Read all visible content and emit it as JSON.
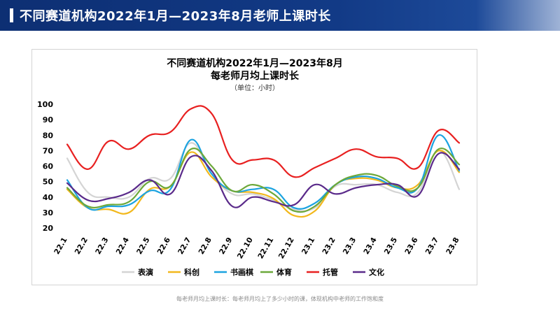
{
  "header": {
    "title": "不同赛道机构2022年1月—2023年8月老师上课时长"
  },
  "footnote": "每老师月均上课时长：每老师月均上了多少小时的课，体现机构中老师的工作饱和度",
  "chart_data": {
    "type": "line",
    "title_line1": "不同赛道机构2022年1月—2023年8月",
    "title_line2": "每老师月均上课时长",
    "unit": "（单位：小时）",
    "categories": [
      "22.1",
      "22.2",
      "22.3",
      "22.4",
      "22.5",
      "22.6",
      "22.7",
      "22.8",
      "22.9",
      "22.10",
      "22.11",
      "22.12",
      "23.1",
      "23.2",
      "23.3",
      "23.4",
      "23.5",
      "23.6",
      "23.7",
      "23.8"
    ],
    "ylim": [
      20,
      100
    ],
    "yticks": [
      20,
      30,
      40,
      50,
      60,
      70,
      80,
      90,
      100
    ],
    "grid": false,
    "legend_position": "bottom",
    "series": [
      {
        "name": "表演",
        "color": "#d4d4d4",
        "values": [
          65,
          43,
          40,
          40,
          52,
          52,
          75,
          55,
          42,
          42,
          38,
          32,
          33,
          47,
          48,
          48,
          43,
          43,
          70,
          45
        ]
      },
      {
        "name": "科创",
        "color": "#f2b81c",
        "values": [
          45,
          33,
          32,
          30,
          45,
          47,
          69,
          53,
          44,
          43,
          39,
          28,
          31,
          48,
          52,
          51,
          46,
          48,
          70,
          56
        ]
      },
      {
        "name": "书画棋",
        "color": "#1ba3e0",
        "values": [
          51,
          33,
          34,
          35,
          44,
          45,
          77,
          55,
          44,
          45,
          45,
          33,
          36,
          48,
          53,
          52,
          46,
          46,
          80,
          57
        ]
      },
      {
        "name": "体育",
        "color": "#6ca83a",
        "values": [
          46,
          34,
          35,
          37,
          50,
          47,
          71,
          60,
          44,
          48,
          42,
          31,
          34,
          48,
          54,
          54,
          47,
          46,
          71,
          61
        ]
      },
      {
        "name": "托管",
        "color": "#e82020",
        "values": [
          74,
          58,
          76,
          71,
          80,
          82,
          97,
          94,
          64,
          64,
          64,
          53,
          59,
          65,
          71,
          66,
          65,
          59,
          83,
          75
        ]
      },
      {
        "name": "文化",
        "color": "#5a2a8a",
        "values": [
          49,
          38,
          39,
          43,
          51,
          42,
          66,
          57,
          34,
          40,
          37,
          35,
          48,
          42,
          46,
          48,
          48,
          41,
          68,
          58
        ]
      }
    ]
  }
}
